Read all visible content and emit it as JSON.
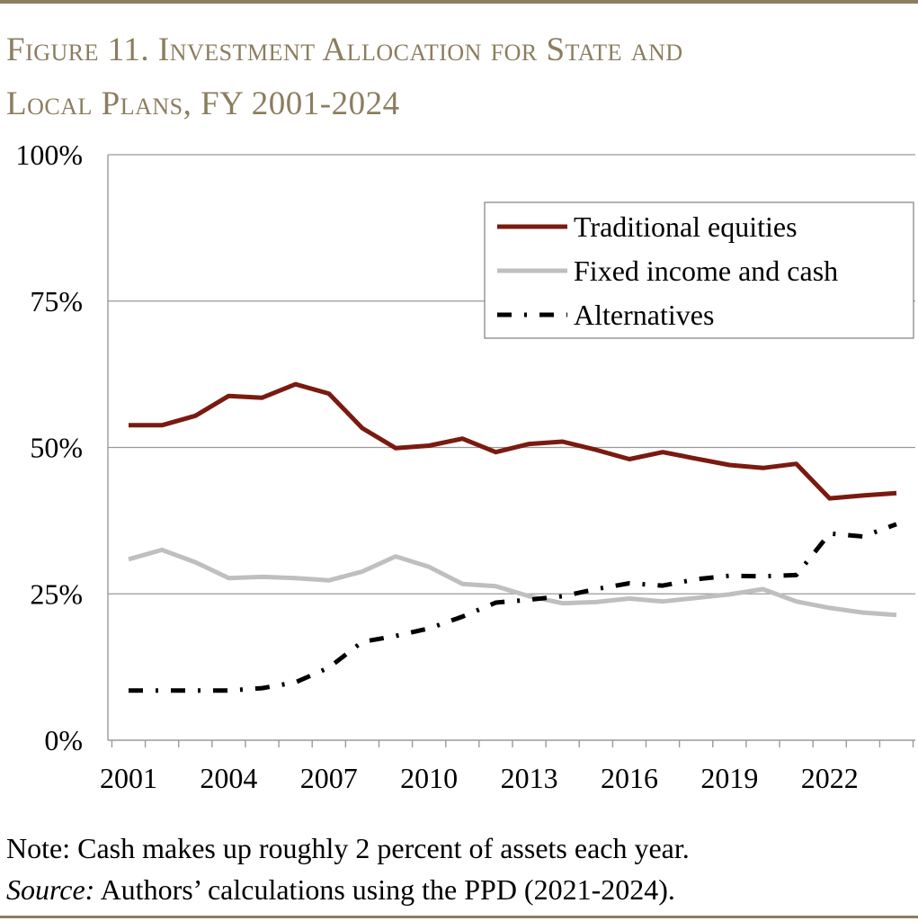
{
  "title_line1": "Figure 11. Investment Allocation for State and",
  "title_line2": "Local Plans, FY 2001-2024",
  "colors": {
    "rule": "#8b7d5f",
    "title": "#8b7d5f",
    "equities": "#7a1a10",
    "fixed": "#bfbfbf",
    "alternatives": "#000000",
    "grid": "#9a9a9a"
  },
  "chart_data": {
    "type": "line",
    "title": "Investment Allocation for State and Local Plans, FY 2001-2024",
    "xlabel": "",
    "ylabel": "",
    "xlim": [
      2001,
      2024
    ],
    "ylim": [
      0,
      100
    ],
    "x_ticks": [
      2001,
      2004,
      2007,
      2010,
      2013,
      2016,
      2019,
      2022
    ],
    "y_ticks": [
      0,
      25,
      50,
      75,
      100
    ],
    "y_tick_labels": [
      "0%",
      "25%",
      "50%",
      "75%",
      "100%"
    ],
    "grid": "horizontal",
    "legend_position": "top-right",
    "x": [
      2001,
      2002,
      2003,
      2004,
      2005,
      2006,
      2007,
      2008,
      2009,
      2010,
      2011,
      2012,
      2013,
      2014,
      2015,
      2016,
      2017,
      2018,
      2019,
      2020,
      2021,
      2022,
      2023,
      2024
    ],
    "series": [
      {
        "name": "Traditional equities",
        "style": "solid",
        "values": [
          53.8,
          53.8,
          55.4,
          58.8,
          58.5,
          60.8,
          59.2,
          53.3,
          49.9,
          50.3,
          51.5,
          49.2,
          50.6,
          51.0,
          49.6,
          48.0,
          49.2,
          48.1,
          47.0,
          46.5,
          47.2,
          41.3,
          41.8,
          42.2
        ]
      },
      {
        "name": "Fixed income and cash",
        "style": "solid",
        "values": [
          30.9,
          32.5,
          30.4,
          27.7,
          27.9,
          27.7,
          27.3,
          28.8,
          31.4,
          29.6,
          26.7,
          26.3,
          24.6,
          23.4,
          23.6,
          24.2,
          23.7,
          24.3,
          24.9,
          25.8,
          23.7,
          22.6,
          21.8,
          21.4
        ]
      },
      {
        "name": "Alternatives",
        "style": "dash-dot",
        "values": [
          8.5,
          8.5,
          8.5,
          8.5,
          8.9,
          9.9,
          12.4,
          16.8,
          17.8,
          19.1,
          21.1,
          23.5,
          24.0,
          24.6,
          25.8,
          26.8,
          26.4,
          27.5,
          28.1,
          28.0,
          28.2,
          35.3,
          34.8,
          36.9
        ]
      }
    ]
  },
  "note_text": "Note: Cash makes up roughly 2 percent of assets each year.",
  "source_label": "Source:",
  "source_text": " Authors’ calculations using the PPD (2021-2024)."
}
